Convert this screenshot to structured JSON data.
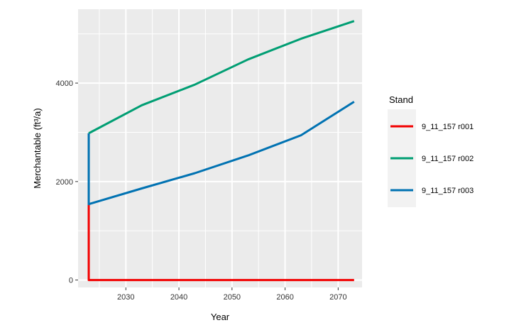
{
  "chart_data": {
    "type": "line",
    "xlabel": "Year",
    "ylabel": "Merchantable (ft³/a)",
    "xlim": [
      2021,
      2074.5
    ],
    "ylim": [
      -150,
      5500
    ],
    "x_ticks": [
      2030,
      2040,
      2050,
      2060,
      2070
    ],
    "y_ticks": [
      0,
      2000,
      4000
    ],
    "grid": true,
    "legend": {
      "title": "Stand",
      "placement": "right"
    },
    "series": [
      {
        "name": "9_11_157 r001",
        "color": "#f20000",
        "points": [
          [
            2023,
            1560
          ],
          [
            2023,
            0
          ],
          [
            2073,
            0
          ]
        ]
      },
      {
        "name": "9_11_157 r002",
        "color": "#009e73",
        "points": [
          [
            2023,
            2980
          ],
          [
            2033,
            3550
          ],
          [
            2043,
            3970
          ],
          [
            2053,
            4480
          ],
          [
            2063,
            4900
          ],
          [
            2073,
            5260
          ]
        ]
      },
      {
        "name": "9_11_157 r003",
        "color": "#0072b2",
        "points": [
          [
            2023,
            2980
          ],
          [
            2023,
            1540
          ],
          [
            2033,
            1860
          ],
          [
            2043,
            2170
          ],
          [
            2053,
            2530
          ],
          [
            2063,
            2940
          ],
          [
            2073,
            3620
          ]
        ]
      }
    ]
  }
}
